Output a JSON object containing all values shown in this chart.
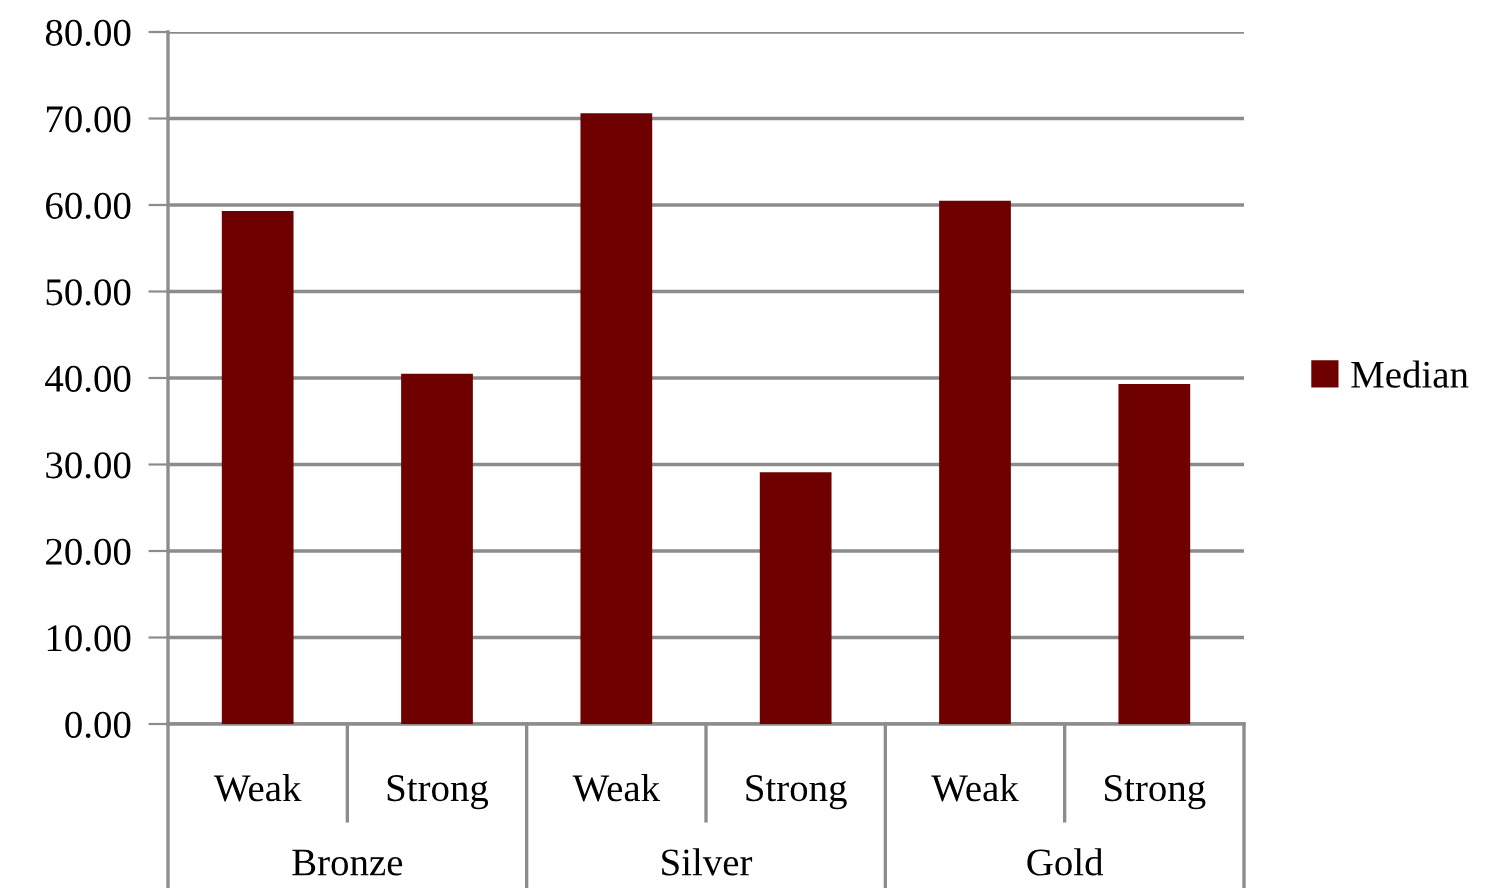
{
  "chart_data": {
    "type": "bar",
    "categories": [
      "Weak",
      "Strong",
      "Weak",
      "Strong",
      "Weak",
      "Strong"
    ],
    "series": [
      {
        "name": "Median",
        "color": "#6e0000",
        "values": [
          59.3,
          40.5,
          70.6,
          29.1,
          60.5,
          39.3
        ]
      }
    ],
    "annotations": [
      "Bronze",
      "Silver",
      "Gold"
    ],
    "ylim": [
      0,
      80
    ],
    "yticks": [
      {
        "value": 0,
        "label": "0.00"
      },
      {
        "value": 10,
        "label": "10.00"
      },
      {
        "value": 20,
        "label": "20.00"
      },
      {
        "value": 30,
        "label": "30.00"
      },
      {
        "value": 40,
        "label": "40.00"
      },
      {
        "value": 50,
        "label": "50.00"
      },
      {
        "value": 60,
        "label": "60.00"
      },
      {
        "value": 70,
        "label": "70.00"
      },
      {
        "value": 80,
        "label": "80.00"
      }
    ],
    "grid": "y",
    "legend": "right"
  }
}
